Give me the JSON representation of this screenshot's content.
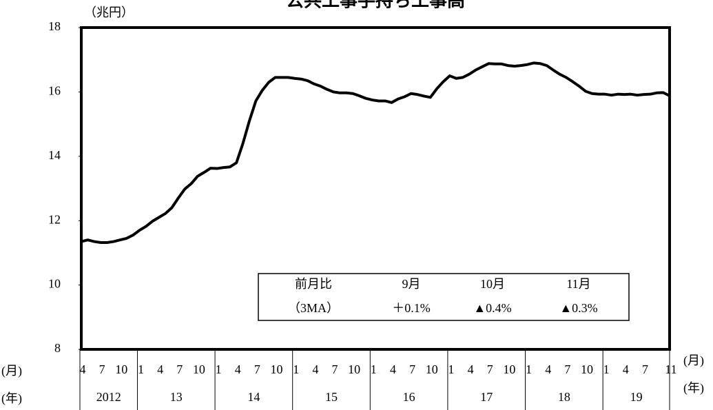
{
  "chart_data": {
    "type": "line",
    "title": "公共工事手持ち工事高",
    "y_unit": "（兆円）",
    "x_month_label": "(月)",
    "x_year_label": "(年)",
    "categories": [
      "4",
      null,
      null,
      "7",
      null,
      null,
      "10",
      null,
      null,
      "1",
      null,
      null,
      "4",
      null,
      null,
      "7",
      null,
      null,
      "10",
      null,
      null,
      "1",
      null,
      null,
      "4",
      null,
      null,
      "7",
      null,
      null,
      "10",
      null,
      null,
      "1",
      null,
      null,
      "4",
      null,
      null,
      "7",
      null,
      null,
      "10",
      null,
      null,
      "1",
      null,
      null,
      "4",
      null,
      null,
      "7",
      null,
      null,
      "10",
      null,
      null,
      "1",
      null,
      null,
      "4",
      null,
      null,
      "7",
      null,
      null,
      "10",
      null,
      null,
      "1",
      null,
      null,
      "4",
      null,
      null,
      "7",
      null,
      null,
      "10",
      null,
      null,
      "1",
      null,
      null,
      "4",
      null,
      null,
      "7",
      null,
      null,
      null,
      "11"
    ],
    "years": [
      "2012",
      "13",
      "14",
      "15",
      "16",
      "17",
      "18",
      "19"
    ],
    "series": [
      {
        "name": "公共工事手持ち工事高",
        "color": "#000000",
        "values": [
          11.35,
          11.4,
          11.35,
          11.32,
          11.32,
          11.35,
          11.4,
          11.45,
          11.55,
          11.7,
          11.82,
          11.98,
          12.1,
          12.22,
          12.4,
          12.7,
          12.98,
          13.15,
          13.38,
          13.5,
          13.63,
          13.62,
          13.65,
          13.67,
          13.8,
          14.4,
          15.1,
          15.72,
          16.05,
          16.3,
          16.45,
          16.45,
          16.45,
          16.42,
          16.4,
          16.35,
          16.25,
          16.18,
          16.08,
          16.0,
          15.97,
          15.97,
          15.95,
          15.88,
          15.8,
          15.75,
          15.72,
          15.72,
          15.67,
          15.78,
          15.85,
          15.95,
          15.92,
          15.87,
          15.83,
          16.1,
          16.32,
          16.5,
          16.42,
          16.45,
          16.55,
          16.68,
          16.78,
          16.88,
          16.87,
          16.87,
          16.82,
          16.8,
          16.82,
          16.85,
          16.9,
          16.88,
          16.82,
          16.68,
          16.55,
          16.45,
          16.32,
          16.18,
          16.02,
          15.95,
          15.93,
          15.93,
          15.9,
          15.93,
          15.92,
          15.93,
          15.9,
          15.92,
          15.93,
          15.97,
          15.98,
          15.88
        ]
      }
    ],
    "ylim": [
      8,
      18
    ],
    "yticks": [
      8,
      10,
      12,
      14,
      16,
      18
    ],
    "inset_table": {
      "rows": [
        [
          "前月比",
          "9月",
          "10月",
          "11月"
        ],
        [
          "（3MA）",
          "＋0.1%",
          "▲0.4%",
          "▲0.3%"
        ]
      ]
    }
  }
}
